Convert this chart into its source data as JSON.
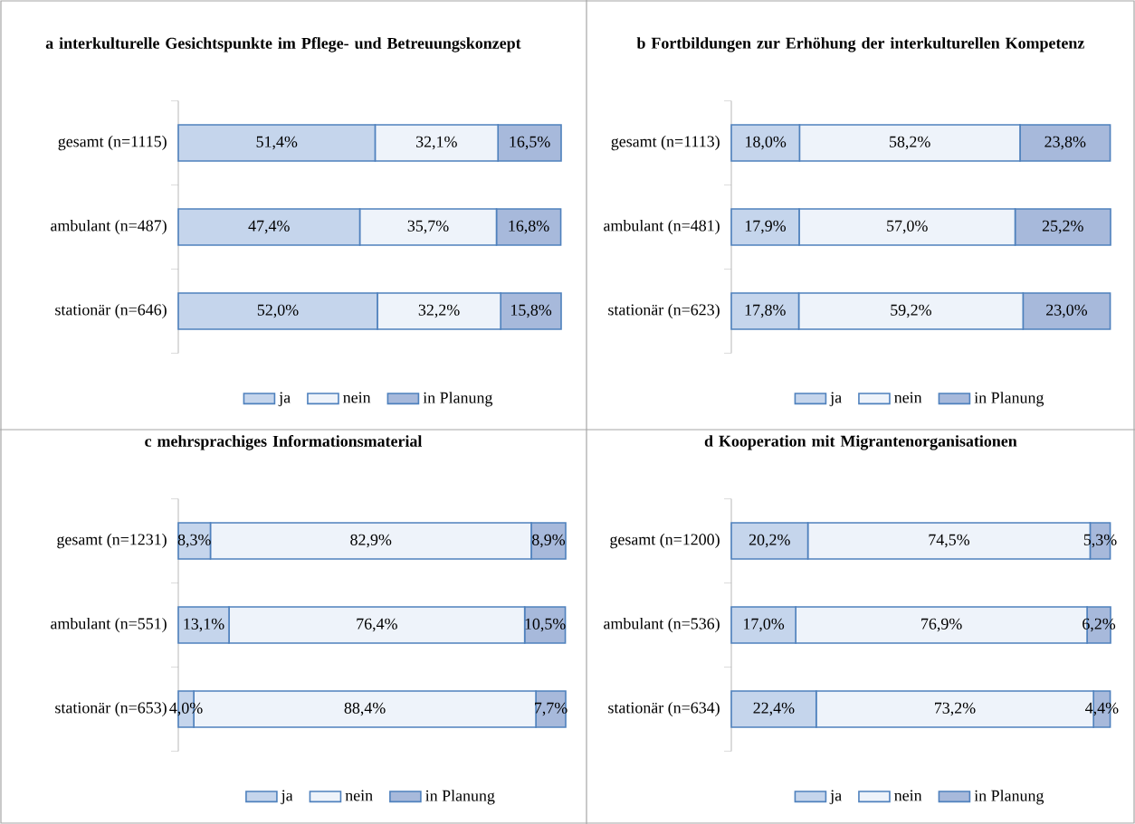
{
  "chart_data": [
    {
      "type": "bar",
      "orientation": "horizontal",
      "stacked": true,
      "title": "a interkulturelle Gesichtspunkte im Pflege- und Betreuungskonzept",
      "categories": [
        "gesamt (n=1115)",
        "ambulant (n=487)",
        "stationär (n=646)"
      ],
      "legend": "bottom",
      "tick_labels": "y",
      "series": [
        {
          "name": "ja",
          "color": "#c5d5ec",
          "values": [
            51.4,
            47.4,
            52.0
          ],
          "value_labels": [
            "51,4%",
            "47,4%",
            "52,0%"
          ]
        },
        {
          "name": "nein",
          "color": "#eef3fa",
          "values": [
            32.1,
            35.7,
            32.2
          ],
          "value_labels": [
            "32,1%",
            "35,7%",
            "32,2%"
          ]
        },
        {
          "name": "in Planung",
          "color": "#a7b9db",
          "values": [
            16.5,
            16.8,
            15.8
          ],
          "value_labels": [
            "16,5%",
            "16,8%",
            "15,8%"
          ]
        }
      ]
    },
    {
      "type": "bar",
      "orientation": "horizontal",
      "stacked": true,
      "title": "b Fortbildungen zur Erhöhung der interkulturellen Kompetenz",
      "categories": [
        "gesamt (n=1113)",
        "ambulant (n=481)",
        "stationär (n=623)"
      ],
      "legend": "bottom",
      "tick_labels": "y",
      "series": [
        {
          "name": "ja",
          "color": "#c5d5ec",
          "values": [
            18.0,
            17.9,
            17.8
          ],
          "value_labels": [
            "18,0%",
            "17,9%",
            "17,8%"
          ]
        },
        {
          "name": "nein",
          "color": "#eef3fa",
          "values": [
            58.2,
            57.0,
            59.2
          ],
          "value_labels": [
            "58,2%",
            "57,0%",
            "59,2%"
          ]
        },
        {
          "name": "in Planung",
          "color": "#a7b9db",
          "values": [
            23.8,
            25.2,
            23.0
          ],
          "value_labels": [
            "23,8%",
            "25,2%",
            "23,0%"
          ]
        }
      ]
    },
    {
      "type": "bar",
      "orientation": "horizontal",
      "stacked": true,
      "title": "c mehrsprachiges Informationsmaterial",
      "categories": [
        "gesamt (n=1231)",
        "ambulant (n=551)",
        "stationär (n=653)"
      ],
      "legend": "bottom",
      "tick_labels": "y",
      "series": [
        {
          "name": "ja",
          "color": "#c5d5ec",
          "values": [
            8.3,
            13.1,
            4.0
          ],
          "value_labels": [
            "8,3%",
            "13,1%",
            "4,0%"
          ]
        },
        {
          "name": "nein",
          "color": "#eef3fa",
          "values": [
            82.9,
            76.4,
            88.4
          ],
          "value_labels": [
            "82,9%",
            "76,4%",
            "88,4%"
          ]
        },
        {
          "name": "in Planung",
          "color": "#a7b9db",
          "values": [
            8.9,
            10.5,
            7.7
          ],
          "value_labels": [
            "8,9%",
            "10,5%",
            "7,7%"
          ]
        }
      ]
    },
    {
      "type": "bar",
      "orientation": "horizontal",
      "stacked": true,
      "title": "d Kooperation mit Migrantenorganisationen",
      "categories": [
        "gesamt (n=1200)",
        "ambulant (n=536)",
        "stationär (n=634)"
      ],
      "legend": "bottom",
      "tick_labels": "y",
      "series": [
        {
          "name": "ja",
          "color": "#c5d5ec",
          "values": [
            20.2,
            17.0,
            22.4
          ],
          "value_labels": [
            "20,2%",
            "17,0%",
            "22,4%"
          ]
        },
        {
          "name": "nein",
          "color": "#eef3fa",
          "values": [
            74.5,
            76.9,
            73.2
          ],
          "value_labels": [
            "74,5%",
            "76,9%",
            "73,2%"
          ]
        },
        {
          "name": "in Planung",
          "color": "#a7b9db",
          "values": [
            5.3,
            6.2,
            4.4
          ],
          "value_labels": [
            "5,3%",
            "6,2%",
            "4,4%"
          ]
        }
      ]
    }
  ]
}
